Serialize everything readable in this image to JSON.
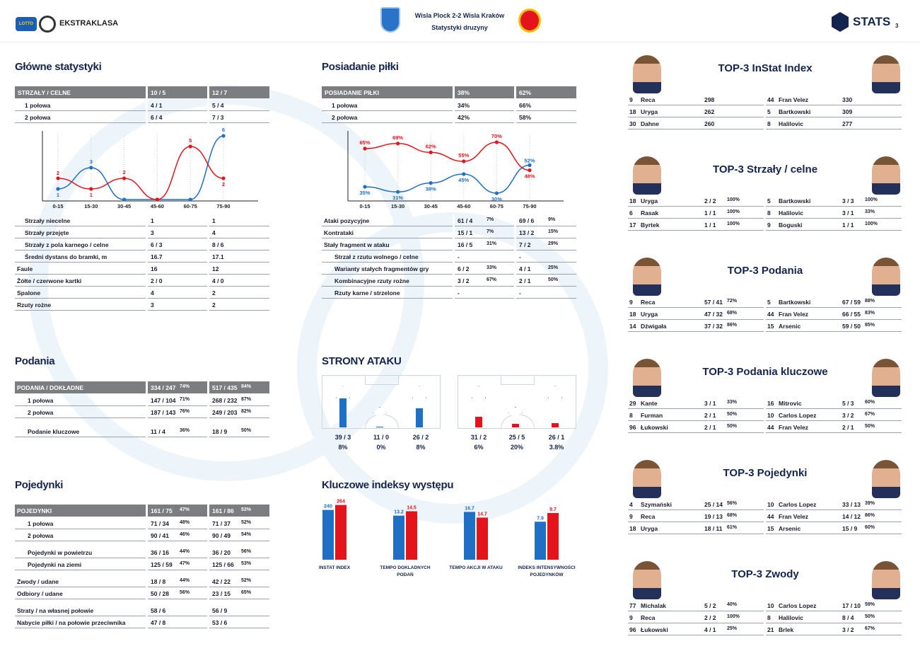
{
  "header": {
    "league": "EKSTRAKLASA",
    "match": "Wisla Plock 2-2 Wisla Krakow",
    "match_display": "Wisla Plock 2-2 Wisla Kraków",
    "subtitle": "Statystyki druzyny",
    "brand": "STATS",
    "page": "3",
    "lotto": "LOTTO"
  },
  "colors": {
    "home": "#1f6fc5",
    "away": "#e3141c",
    "header_gray": "#7b7d80",
    "title": "#13244e"
  },
  "main": {
    "title": "Główne statystyki",
    "header": [
      "STRZAŁY / CELNE",
      "10 / 5",
      "12 / 7"
    ],
    "rows_top": [
      [
        "1 połowa",
        "4 / 1",
        "5 / 4"
      ],
      [
        "2 połowa",
        "6 / 4",
        "7 / 3"
      ]
    ],
    "rows": [
      [
        "Strzały niecelne",
        "1",
        "1"
      ],
      [
        "Strzały przejęte",
        "3",
        "4"
      ],
      [
        "Strzały z pola karnego / celne",
        "6 / 3",
        "8 / 6"
      ],
      [
        "Średni dystans do bramki, m",
        "16.7",
        "17.1"
      ],
      [
        "Faule",
        "16",
        "12"
      ],
      [
        "Żółte / czerwone kartki",
        "2 / 0",
        "4 / 0"
      ],
      [
        "Spalone",
        "4",
        "2"
      ],
      [
        "Rzuty rożne",
        "3",
        "2"
      ]
    ]
  },
  "possession": {
    "title": "Posiadanie piłki",
    "header": [
      "POSIADANIE PIŁKI",
      "38%",
      "62%"
    ],
    "rows_top": [
      [
        "1 połowa",
        "34%",
        "66%"
      ],
      [
        "2 połowa",
        "42%",
        "58%"
      ]
    ],
    "rows": [
      [
        "Ataki pozycyjne",
        "61 / 4",
        "7%",
        "69 / 6",
        "9%"
      ],
      [
        "Kontrataki",
        "15 / 1",
        "7%",
        "13 / 2",
        "15%"
      ],
      [
        "Stały fragment w ataku",
        "16 / 5",
        "31%",
        "7 / 2",
        "29%"
      ],
      [
        "Strzał z rzutu wolnego / celne",
        "-",
        "",
        "-",
        ""
      ],
      [
        "Warianty stałych fragmentów gry",
        "6 / 2",
        "33%",
        "4 / 1",
        "25%"
      ],
      [
        "Kombinacyjne rzuty rożne",
        "3 / 2",
        "67%",
        "2 / 1",
        "50%"
      ],
      [
        "Rzuty karne / strzelone",
        "-",
        "",
        "-",
        ""
      ]
    ]
  },
  "chart_data": [
    {
      "type": "line",
      "title": "",
      "categories": [
        "0-15",
        "15-30",
        "30-45",
        "45-60",
        "60-75",
        "75-90"
      ],
      "series": [
        {
          "values": [
            1,
            3,
            0,
            0,
            0,
            6
          ]
        },
        {
          "values": [
            2,
            1,
            2,
            0,
            5,
            2
          ]
        }
      ],
      "labels_home": [
        "1",
        "3",
        "",
        "",
        "",
        "6"
      ],
      "labels_away": [
        "2",
        "1",
        "2",
        "",
        "5",
        "2"
      ]
    },
    {
      "type": "line",
      "title": "",
      "categories": [
        "0-15",
        "15-30",
        "30-45",
        "45-60",
        "60-75",
        "75-90"
      ],
      "series": [
        {
          "values": [
            35,
            31,
            38,
            45,
            30,
            52
          ]
        },
        {
          "values": [
            65,
            69,
            62,
            55,
            70,
            48
          ]
        }
      ],
      "labels_home": [
        "35%",
        "31%",
        "38%",
        "45%",
        "30%",
        "52%"
      ],
      "labels_away": [
        "65%",
        "69%",
        "62%",
        "55%",
        "70%",
        "48%"
      ]
    },
    {
      "type": "bar",
      "title": "",
      "categories": [
        "INSTAT INDEX",
        "TEMPO DOKLADNYCH PODAŃ",
        "TEMPO AKCJI W ATAKU",
        "INDEKS INTENSYWNOŚCI POJEDYNKÓW"
      ],
      "series": [
        {
          "values": [
            240,
            13.2,
            16.7,
            7.9
          ]
        },
        {
          "values": [
            264,
            14.5,
            14.7,
            9.7
          ]
        }
      ],
      "labels_home": [
        "240",
        "13.2",
        "16.7",
        "7.9"
      ],
      "labels_away": [
        "264",
        "14.5",
        "14.7",
        "9.7"
      ]
    }
  ],
  "passes": {
    "title": "Podania",
    "header": [
      "PODANIA / DOKŁADNE",
      "334 / 247",
      "74%",
      "517 / 435",
      "84%"
    ],
    "rows": [
      [
        "1 połowa",
        "147 / 104",
        "71%",
        "268 / 232",
        "87%"
      ],
      [
        "2 połowa",
        "187 / 143",
        "76%",
        "249 / 203",
        "82%"
      ],
      [
        "Podanie kluczowe",
        "11 / 4",
        "36%",
        "18 / 9",
        "50%"
      ]
    ]
  },
  "duels": {
    "title": "Pojedynki",
    "header": [
      "POJEDYNKI",
      "161 / 75",
      "47%",
      "161 / 86",
      "53%"
    ],
    "rows": [
      [
        "1 połowa",
        "71 / 34",
        "48%",
        "71 / 37",
        "52%"
      ],
      [
        "2 połowa",
        "90 / 41",
        "46%",
        "90 / 49",
        "54%"
      ],
      [
        "Pojedynki w powietrzu",
        "36 / 16",
        "44%",
        "36 / 20",
        "56%"
      ],
      [
        "Pojedynki na ziemi",
        "125 / 59",
        "47%",
        "125 / 66",
        "53%"
      ],
      [
        "Zwody / udane",
        "18 / 8",
        "44%",
        "42 / 22",
        "52%"
      ],
      [
        "Odbiory / udane",
        "50 / 28",
        "56%",
        "23 / 15",
        "65%"
      ],
      [
        "Straty / na własnej połowie",
        "58 / 6",
        "",
        "56 / 9",
        ""
      ],
      [
        "Nabycie piłki / na połowie przeciwnika",
        "47 / 8",
        "",
        "53 / 6",
        ""
      ]
    ]
  },
  "attack_sides": {
    "title": "STRONY ATAKU",
    "home": [
      {
        "v": "39 / 3",
        "p": "8%",
        "fill": 0.7
      },
      {
        "v": "11 / 0",
        "p": "0%",
        "fill": 0.0
      },
      {
        "v": "26 / 2",
        "p": "8%",
        "fill": 0.45
      }
    ],
    "away": [
      {
        "v": "31 / 2",
        "p": "6%",
        "fill": 0.25
      },
      {
        "v": "25 / 5",
        "p": "20%",
        "fill": 0.18
      },
      {
        "v": "26 / 1",
        "p": "3.8%",
        "fill": 0.1
      }
    ]
  },
  "key_indexes": {
    "title": "Kluczowe indeksy występu",
    "labels": [
      [
        "INSTAT INDEX",
        ""
      ],
      [
        "TEMPO DOKLADNYCH",
        "PODAŃ"
      ],
      [
        "TEMPO AKCJI W ATAKU",
        ""
      ],
      [
        "INDEKS INTENSYWNOŚCI",
        "POJEDYNKÓW"
      ]
    ]
  },
  "top": [
    {
      "title": "TOP-3 InStat Index",
      "home": [
        [
          "9",
          "Reca",
          "298",
          ""
        ],
        [
          "18",
          "Uryga",
          "262",
          ""
        ],
        [
          "30",
          "Dahne",
          "260",
          ""
        ]
      ],
      "away": [
        [
          "44",
          "Fran Velez",
          "330",
          ""
        ],
        [
          "5",
          "Bartkowski",
          "309",
          ""
        ],
        [
          "8",
          "Halilovic",
          "277",
          ""
        ]
      ]
    },
    {
      "title": "TOP-3 Strzały / celne",
      "home": [
        [
          "18",
          "Uryga",
          "2 / 2",
          "100%"
        ],
        [
          "6",
          "Rasak",
          "1 / 1",
          "100%"
        ],
        [
          "17",
          "Byrtek",
          "1 / 1",
          "100%"
        ]
      ],
      "away": [
        [
          "5",
          "Bartkowski",
          "3 / 3",
          "100%"
        ],
        [
          "8",
          "Halilovic",
          "3 / 1",
          "33%"
        ],
        [
          "9",
          "Boguski",
          "1 / 1",
          "100%"
        ]
      ]
    },
    {
      "title": "TOP-3 Podania",
      "home": [
        [
          "9",
          "Reca",
          "57 / 41",
          "72%"
        ],
        [
          "18",
          "Uryga",
          "47 / 32",
          "68%"
        ],
        [
          "14",
          "Dźwigała",
          "37 / 32",
          "86%"
        ]
      ],
      "away": [
        [
          "5",
          "Bartkowski",
          "67 / 59",
          "88%"
        ],
        [
          "44",
          "Fran Velez",
          "66 / 55",
          "83%"
        ],
        [
          "15",
          "Arsenic",
          "59 / 50",
          "85%"
        ]
      ]
    },
    {
      "title": "TOP-3 Podania kluczowe",
      "home": [
        [
          "29",
          "Kante",
          "3 / 1",
          "33%"
        ],
        [
          "8",
          "Furman",
          "2 / 1",
          "50%"
        ],
        [
          "96",
          "Łukowski",
          "2 / 1",
          "50%"
        ]
      ],
      "away": [
        [
          "16",
          "Mitrovic",
          "5 / 3",
          "60%"
        ],
        [
          "10",
          "Carlos Lopez",
          "3 / 2",
          "67%"
        ],
        [
          "44",
          "Fran Velez",
          "2 / 1",
          "50%"
        ]
      ]
    },
    {
      "title": "TOP-3 Pojedynki",
      "home": [
        [
          "4",
          "Szymański",
          "25 / 14",
          "56%"
        ],
        [
          "9",
          "Reca",
          "19 / 13",
          "68%"
        ],
        [
          "18",
          "Uryga",
          "18 / 11",
          "61%"
        ]
      ],
      "away": [
        [
          "10",
          "Carlos Lopez",
          "33 / 13",
          "39%"
        ],
        [
          "44",
          "Fran Velez",
          "14 / 12",
          "86%"
        ],
        [
          "15",
          "Arsenic",
          "15 / 9",
          "60%"
        ]
      ]
    },
    {
      "title": "TOP-3 Zwody",
      "home": [
        [
          "77",
          "Michalak",
          "5 / 2",
          "40%"
        ],
        [
          "9",
          "Reca",
          "2 / 2",
          "100%"
        ],
        [
          "96",
          "Łukowski",
          "4 / 1",
          "25%"
        ]
      ],
      "away": [
        [
          "10",
          "Carlos Lopez",
          "17 / 10",
          "59%"
        ],
        [
          "8",
          "Halilovic",
          "8 / 4",
          "50%"
        ],
        [
          "21",
          "Brlek",
          "3 / 2",
          "67%"
        ]
      ]
    }
  ]
}
